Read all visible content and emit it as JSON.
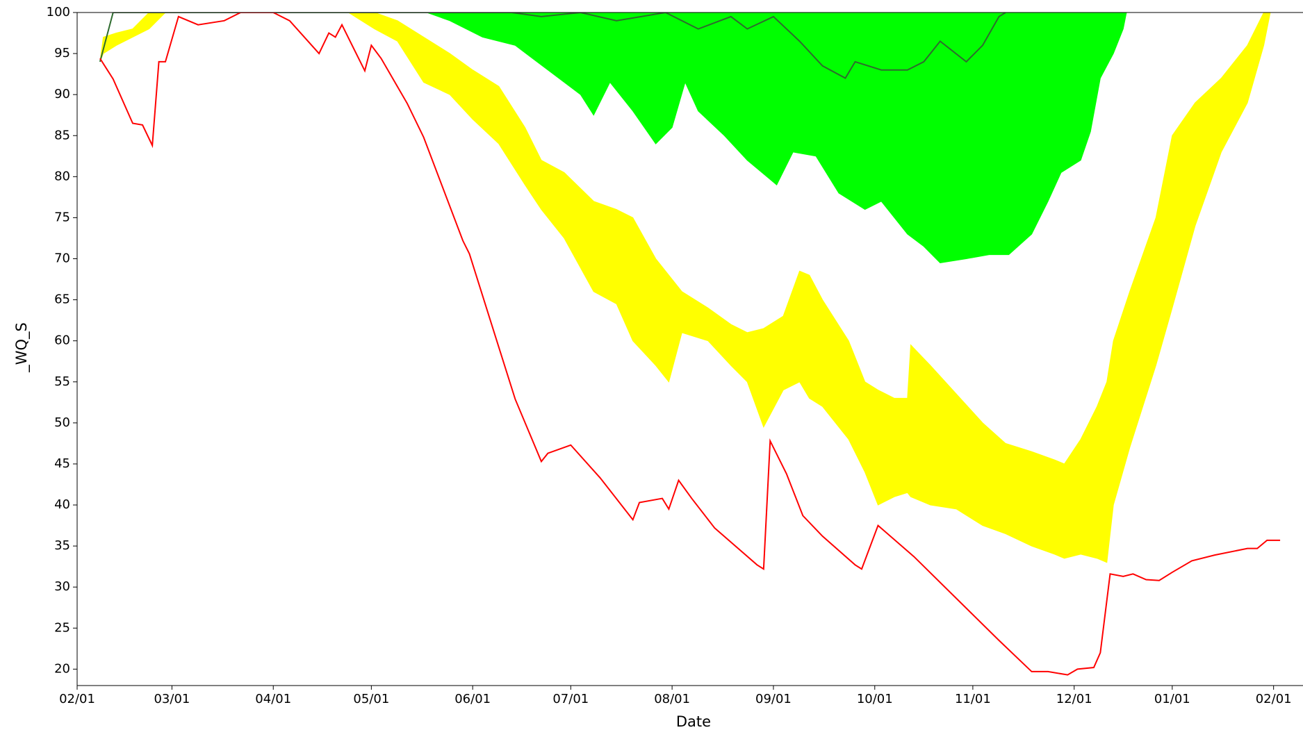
{
  "chart_data": {
    "type": "line",
    "xlabel": "Date",
    "ylabel": "_WQ_S",
    "xlim": [
      0,
      375
    ],
    "ylim": [
      18,
      100
    ],
    "xticks": [
      {
        "value": 0,
        "label": "02/01"
      },
      {
        "value": 29,
        "label": "03/01"
      },
      {
        "value": 60,
        "label": "04/01"
      },
      {
        "value": 90,
        "label": "05/01"
      },
      {
        "value": 121,
        "label": "06/01"
      },
      {
        "value": 151,
        "label": "07/01"
      },
      {
        "value": 182,
        "label": "08/01"
      },
      {
        "value": 213,
        "label": "09/01"
      },
      {
        "value": 244,
        "label": "10/01"
      },
      {
        "value": 274,
        "label": "11/01"
      },
      {
        "value": 305,
        "label": "12/01"
      },
      {
        "value": 335,
        "label": "01/01"
      },
      {
        "value": 366,
        "label": "02/01"
      }
    ],
    "yticks": [
      20,
      25,
      30,
      35,
      40,
      45,
      50,
      55,
      60,
      65,
      70,
      75,
      80,
      85,
      90,
      95,
      100
    ],
    "bands": [
      {
        "color": "#ffff00",
        "x": [
          7,
          8,
          12,
          17,
          22,
          27,
          83,
          91,
          98,
          106,
          114,
          121,
          129,
          137,
          142,
          149,
          158,
          165,
          170,
          177,
          181,
          185,
          193,
          200,
          205,
          210,
          216,
          221,
          224,
          228,
          236,
          241,
          245,
          250,
          254,
          255,
          261,
          269,
          277,
          284,
          292,
          299,
          302,
          307,
          312,
          315,
          317,
          322,
          330,
          335,
          342,
          350,
          358,
          363,
          365
        ],
        "lower": [
          94,
          95,
          96,
          97,
          98,
          100,
          100,
          98,
          96.5,
          91.5,
          90,
          87,
          84,
          79,
          76,
          72.5,
          66,
          64.5,
          60,
          57,
          55,
          61,
          60,
          57,
          55,
          49.5,
          54,
          55,
          53,
          52,
          48,
          44,
          40,
          41,
          41.5,
          41,
          40,
          39.5,
          37.5,
          36.5,
          35,
          34,
          33.5,
          34,
          33.5,
          33,
          40,
          47,
          57,
          64,
          74,
          83,
          89,
          96,
          100
        ],
        "upper": [
          94,
          97,
          97.5,
          98,
          100,
          100,
          100,
          100,
          99,
          97,
          95,
          93,
          91,
          86,
          82,
          80.5,
          77,
          76,
          75,
          70,
          68,
          66,
          64,
          62,
          61,
          61.5,
          63,
          68.5,
          68,
          65,
          60,
          55,
          54,
          53,
          53,
          59.5,
          57,
          53.5,
          50,
          47.5,
          46.5,
          45.5,
          45,
          48,
          52,
          55,
          60,
          66,
          75,
          85,
          89,
          92,
          96,
          100,
          100
        ]
      },
      {
        "color": "#00ff00",
        "x": [
          7,
          11,
          107,
          114,
          124,
          134,
          144,
          154,
          158,
          163,
          170,
          177,
          182,
          186,
          190,
          198,
          205,
          214,
          219,
          226,
          233,
          241,
          246,
          254,
          259,
          264,
          272,
          279,
          285,
          292,
          297,
          301,
          307,
          310,
          313,
          317,
          320,
          321
        ],
        "lower": [
          94,
          100,
          100,
          99,
          97,
          96,
          93,
          90,
          87.5,
          91.5,
          88,
          84,
          86,
          91.5,
          88,
          85,
          82,
          79,
          83,
          82.5,
          78,
          76,
          77,
          73,
          71.5,
          69.5,
          70,
          70.5,
          70.5,
          73,
          77,
          80.5,
          82,
          85.5,
          92,
          95,
          98,
          100
        ],
        "upper": [
          94,
          100,
          100,
          100,
          100,
          100,
          100,
          100,
          100,
          100,
          100,
          100,
          100,
          100,
          100,
          100,
          100,
          100,
          100,
          100,
          100,
          100,
          100,
          100,
          100,
          100,
          100,
          100,
          100,
          100,
          100,
          100,
          100,
          100,
          100,
          100,
          100,
          100
        ]
      }
    ],
    "series": [
      {
        "color": "#2e6b2e",
        "x": [
          7,
          11,
          133,
          142,
          154,
          165,
          180,
          190,
          200,
          205,
          213,
          221,
          228,
          235,
          238,
          246,
          254,
          259,
          264,
          272,
          277,
          282,
          284
        ],
        "values": [
          94,
          100,
          100,
          99.5,
          100,
          99,
          100,
          98,
          99.5,
          98,
          99.5,
          96.5,
          93.5,
          92,
          94,
          93,
          93,
          94,
          96.5,
          94,
          96,
          99.5,
          100
        ]
      },
      {
        "color": "#ff0000",
        "x": [
          7,
          11,
          17,
          20,
          23,
          25,
          27,
          31,
          37,
          45,
          50,
          60,
          65,
          74,
          77,
          79,
          81,
          88,
          90,
          93,
          101,
          106,
          118,
          120,
          126,
          134,
          142,
          144,
          151,
          160,
          170,
          172,
          179,
          181,
          184,
          188,
          195,
          208,
          210,
          212,
          217,
          222,
          228,
          238,
          240,
          245,
          256,
          269,
          282,
          292,
          297,
          303,
          306,
          311,
          313,
          316,
          320,
          323,
          327,
          331,
          335,
          341,
          348,
          358,
          361,
          364,
          368
        ],
        "values": [
          94.4,
          91.9,
          86.5,
          86.3,
          83.8,
          94,
          94,
          99.5,
          98.5,
          99,
          100,
          100,
          99,
          95,
          97.5,
          97,
          98.5,
          92.9,
          96,
          94.4,
          88.9,
          84.8,
          72.2,
          70.6,
          63,
          52.9,
          45.3,
          46.3,
          47.3,
          43.3,
          38.2,
          40.3,
          40.8,
          39.5,
          43,
          40.8,
          37.2,
          32.7,
          32.2,
          47.8,
          43.8,
          38.7,
          36.2,
          32.7,
          32.2,
          37.5,
          33.7,
          28.6,
          23.5,
          19.7,
          19.7,
          19.3,
          20,
          20.2,
          22,
          31.6,
          31.3,
          31.6,
          30.9,
          30.8,
          31.8,
          33.2,
          33.9,
          34.7,
          34.7,
          35.7,
          35.7
        ]
      }
    ]
  }
}
